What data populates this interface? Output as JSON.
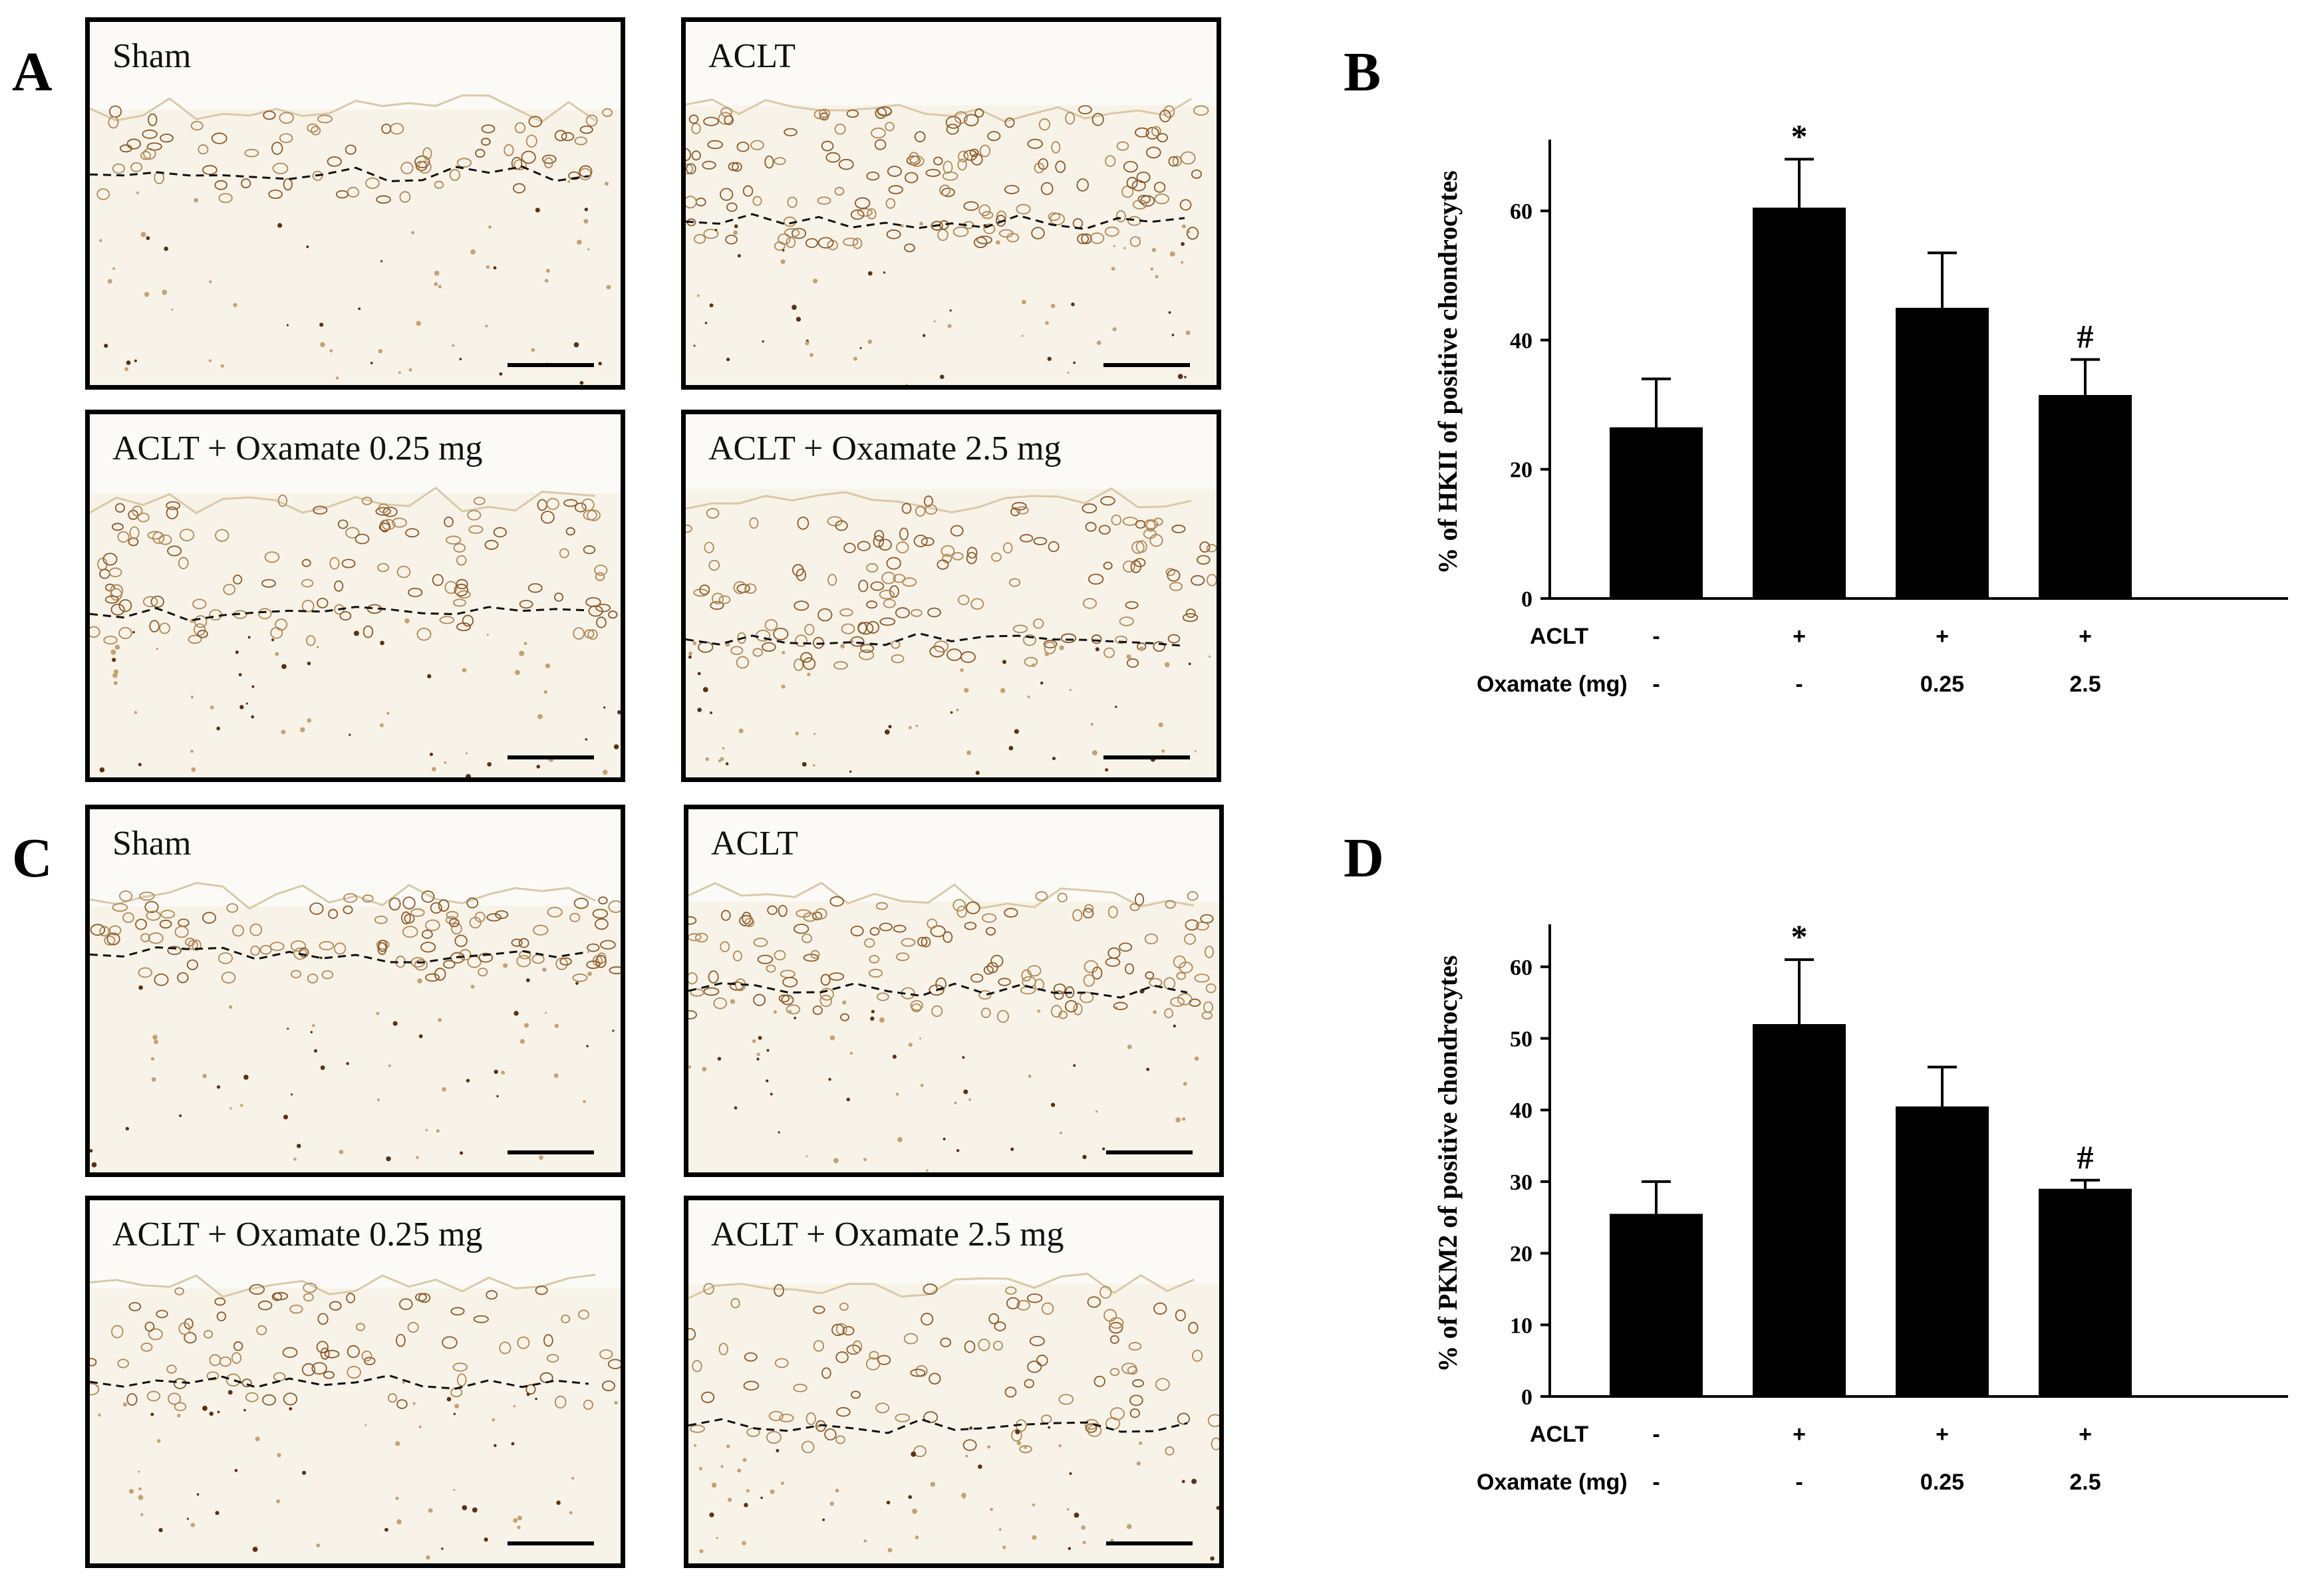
{
  "panels": {
    "A": "A",
    "B": "B",
    "C": "C",
    "D": "D"
  },
  "micrographs": [
    {
      "label": "Sham"
    },
    {
      "label": "ACLT"
    },
    {
      "label": "ACLT + Oxamate 0.25 mg"
    },
    {
      "label": "ACLT + Oxamate 2.5 mg"
    },
    {
      "label": "Sham"
    },
    {
      "label": "ACLT"
    },
    {
      "label": "ACLT + Oxamate 0.25 mg"
    },
    {
      "label": "ACLT + Oxamate 2.5 mg"
    }
  ],
  "colors": {
    "tissue": "#f7f1e4",
    "stain": "#8a4f1c",
    "bar": "#000000"
  },
  "chart_data": [
    {
      "type": "bar",
      "panel": "B",
      "ylabel": "% of HKII of positive chondrocytes",
      "ylim": [
        0,
        70
      ],
      "yticks": [
        0,
        20,
        40,
        60
      ],
      "values": [
        26.5,
        60.5,
        45.0,
        31.5
      ],
      "errors": [
        7.5,
        7.5,
        8.5,
        5.5
      ],
      "annotations": [
        "",
        "*",
        "",
        "#"
      ],
      "row_labels": [
        "ACLT",
        "Oxamate (mg)"
      ],
      "rows": [
        [
          "-",
          "+",
          "+",
          "+"
        ],
        [
          "-",
          "-",
          "0.25",
          "2.5"
        ]
      ],
      "grid": false
    },
    {
      "type": "bar",
      "panel": "D",
      "ylabel": "% of PKM2 of positive chondrocytes",
      "ylim": [
        0,
        65
      ],
      "yticks": [
        0,
        10,
        20,
        30,
        40,
        50,
        60
      ],
      "values": [
        25.5,
        52.0,
        40.5,
        29.0
      ],
      "errors": [
        4.5,
        9.0,
        5.5,
        1.2
      ],
      "annotations": [
        "",
        "*",
        "",
        "#"
      ],
      "row_labels": [
        "ACLT",
        "Oxamate (mg)"
      ],
      "rows": [
        [
          "-",
          "+",
          "+",
          "+"
        ],
        [
          "-",
          "-",
          "0.25",
          "2.5"
        ]
      ],
      "grid": false
    }
  ]
}
